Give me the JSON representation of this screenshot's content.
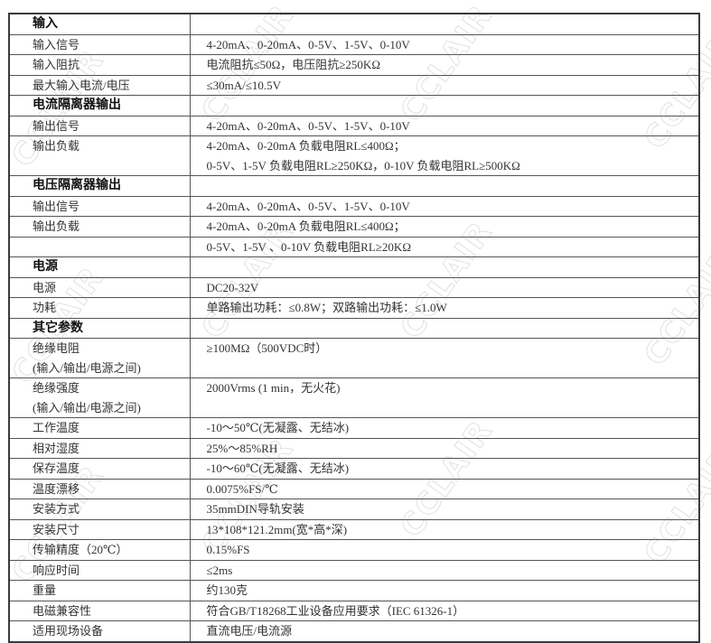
{
  "watermark": "CCLAIR",
  "rows": [
    {
      "type": "section",
      "key": "输入",
      "value": [
        ""
      ]
    },
    {
      "type": "row",
      "key": "输入信号",
      "value": [
        "4-20mA、0-20mA、0-5V、1-5V、0-10V"
      ]
    },
    {
      "type": "row",
      "key": "输入阻抗",
      "value": [
        "电流阻抗≤50Ω，电压阻抗≥250KΩ"
      ]
    },
    {
      "type": "row",
      "key": "最大输入电流/电压",
      "value": [
        "≤30mA/≤10.5V"
      ]
    },
    {
      "type": "section",
      "key": "电流隔离器输出",
      "value": [
        ""
      ]
    },
    {
      "type": "row",
      "key": "输出信号",
      "value": [
        "4-20mA、0-20mA、0-5V、1-5V、0-10V"
      ]
    },
    {
      "type": "row",
      "key": "输出负载",
      "value": [
        "4-20mA、0-20mA 负载电阻RL≤400Ω；",
        "0-5V、1-5V 负载电阻RL≥250KΩ，0-10V 负载电阻RL≥500KΩ"
      ]
    },
    {
      "type": "section",
      "key": "电压隔离器输出",
      "value": [
        ""
      ]
    },
    {
      "type": "row",
      "key": "输出信号",
      "value": [
        "4-20mA、0-20mA、0-5V、1-5V、0-10V"
      ]
    },
    {
      "type": "row",
      "key": "输出负载",
      "value": [
        "4-20mA、0-20mA 负载电阻RL≤400Ω；"
      ]
    },
    {
      "type": "cont",
      "key": "",
      "value": [
        "0-5V、1-5V 、0-10V 负载电阻RL≥20KΩ"
      ]
    },
    {
      "type": "section",
      "key": "电源",
      "value": [
        ""
      ]
    },
    {
      "type": "row",
      "key": "电源",
      "value": [
        "DC20-32V"
      ]
    },
    {
      "type": "row",
      "key": "功耗",
      "value": [
        "单路输出功耗：≤0.8W；双路输出功耗：≤1.0W"
      ]
    },
    {
      "type": "section",
      "key": "其它参数",
      "value": [
        ""
      ]
    },
    {
      "type": "row",
      "key": "绝缘电阻\n(输入/输出/电源之间)",
      "value": [
        "≥100MΩ（500VDC时）"
      ]
    },
    {
      "type": "row",
      "key": "绝缘强度\n(输入/输出/电源之间)",
      "value": [
        "2000Vrms (1 min，无火花)"
      ]
    },
    {
      "type": "row",
      "key": "工作温度",
      "value": [
        "-10～50℃(无凝露、无结冰)"
      ]
    },
    {
      "type": "row",
      "key": "相对湿度",
      "value": [
        "25%～85%RH"
      ]
    },
    {
      "type": "row",
      "key": "保存温度",
      "value": [
        "-10～60℃(无凝露、无结冰)"
      ]
    },
    {
      "type": "row",
      "key": "温度漂移",
      "value": [
        "0.0075%FS/℃"
      ]
    },
    {
      "type": "row",
      "key": "安装方式",
      "value": [
        "35mmDIN导轨安装"
      ]
    },
    {
      "type": "row",
      "key": "安装尺寸",
      "value": [
        "13*108*121.2mm(宽*高*深)"
      ]
    },
    {
      "type": "row",
      "key": "传输精度（20℃）",
      "value": [
        "0.15%FS"
      ]
    },
    {
      "type": "row",
      "key": "响应时间",
      "value": [
        "≤2ms"
      ]
    },
    {
      "type": "row",
      "key": "重量",
      "value": [
        "约130克"
      ]
    },
    {
      "type": "row",
      "key": "电磁兼容性",
      "value": [
        "符合GB/T18268工业设备应用要求（IEC 61326-1）"
      ]
    },
    {
      "type": "row",
      "key": "适用现场设备",
      "value": [
        "直流电压/电流源"
      ]
    }
  ]
}
